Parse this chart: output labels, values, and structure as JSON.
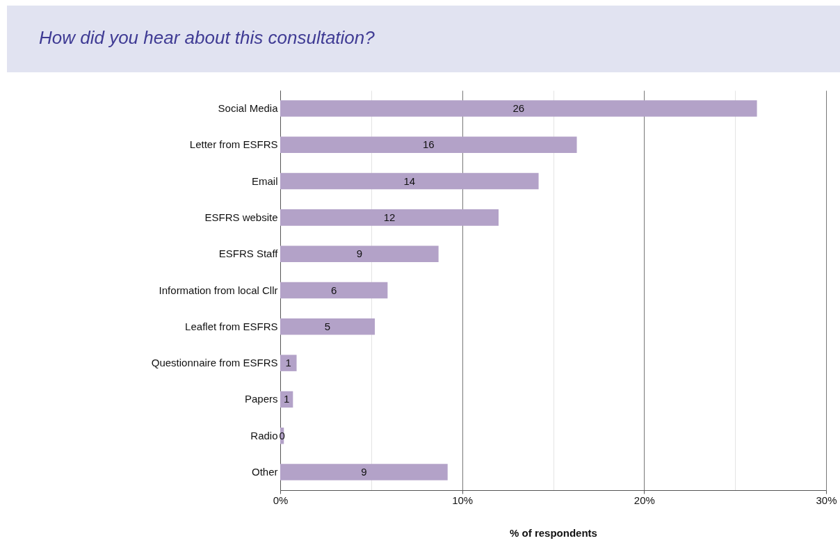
{
  "chart_data": {
    "type": "bar",
    "orientation": "horizontal",
    "title": "How did you hear about this consultation?",
    "xlabel": "% of respondents",
    "categories": [
      "Social Media",
      "Letter from ESFRS",
      "Email",
      "ESFRS website",
      "ESFRS Staff",
      "Information from local Cllr",
      "Leaflet from ESFRS",
      "Questionnaire from ESFRS",
      "Papers",
      "Radio",
      "Other"
    ],
    "values": [
      26.2,
      16.3,
      14.2,
      12.0,
      8.7,
      5.9,
      5.2,
      0.9,
      0.7,
      0.2,
      9.2
    ],
    "value_labels": [
      "26",
      "16",
      "14",
      "12",
      "9",
      "6",
      "5",
      "1",
      "1",
      "0",
      "9"
    ],
    "color": "#b3a2c8",
    "xlim": [
      0,
      30
    ],
    "xticks": [
      {
        "value": 0,
        "label": "0%"
      },
      {
        "value": 5,
        "label": null
      },
      {
        "value": 10,
        "label": "10%"
      },
      {
        "value": 15,
        "label": null
      },
      {
        "value": 20,
        "label": "20%"
      },
      {
        "value": 25,
        "label": null
      },
      {
        "value": 30,
        "label": "30%"
      }
    ],
    "grid": "x"
  }
}
